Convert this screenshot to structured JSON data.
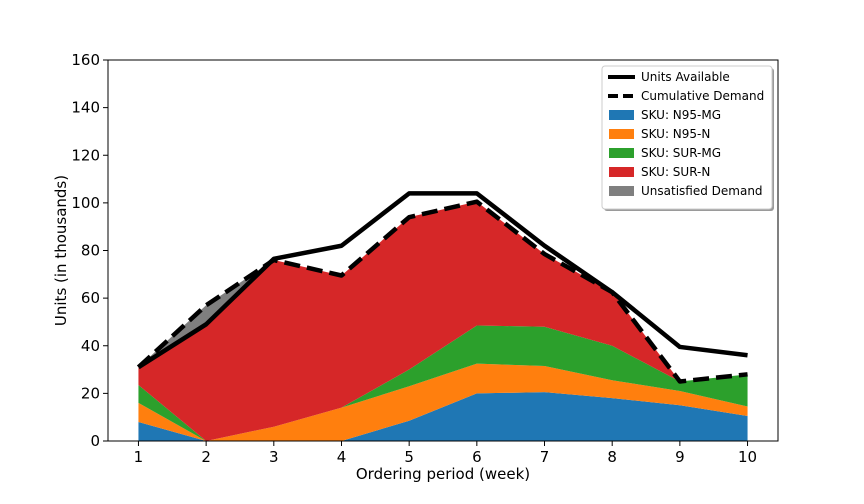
{
  "chart_data": {
    "type": "area",
    "xlabel": "Ordering period (week)",
    "ylabel": "Units (in thousands)",
    "x": [
      1,
      2,
      3,
      4,
      5,
      6,
      7,
      8,
      9,
      10
    ],
    "xticks": [
      "1",
      "2",
      "3",
      "4",
      "5",
      "6",
      "7",
      "8",
      "9",
      "10"
    ],
    "ylim": [
      0,
      160
    ],
    "yticks": [
      "0",
      "20",
      "40",
      "60",
      "80",
      "100",
      "120",
      "140",
      "160"
    ],
    "xlim": [
      0.55,
      10.45
    ],
    "grid": false,
    "legend_position": "top-right",
    "stacked_series": [
      {
        "name": "SKU: N95-MG",
        "color": "#1f77b4",
        "values": [
          8,
          0,
          0,
          0,
          8.5,
          20,
          20.5,
          18,
          15,
          10.5
        ]
      },
      {
        "name": "SKU: N95-N",
        "color": "#ff7f0e",
        "values": [
          8,
          0,
          6,
          14,
          14.5,
          12.5,
          11,
          7.5,
          6,
          4
        ]
      },
      {
        "name": "SKU: SUR-MG",
        "color": "#2ca02c",
        "values": [
          7.5,
          0,
          0,
          0,
          7,
          16,
          16.5,
          14.5,
          4,
          13.5
        ]
      },
      {
        "name": "SKU: SUR-N",
        "color": "#d62728",
        "values": [
          7.5,
          49,
          70,
          55.5,
          64,
          52,
          30.5,
          22.5,
          0,
          0
        ]
      },
      {
        "name": "Unsatisfied Demand",
        "color": "#7f7f7f",
        "values": [
          0,
          8,
          0,
          0,
          0,
          0,
          0,
          0,
          0,
          0
        ]
      }
    ],
    "line_series": [
      {
        "name": "Units Available",
        "style": "solid",
        "color": "#000000",
        "values": [
          31,
          49,
          76.5,
          82,
          104,
          104,
          82,
          62.5,
          39.5,
          36
        ]
      },
      {
        "name": "Cumulative Demand",
        "style": "dashed",
        "color": "#000000",
        "values": [
          31,
          57,
          76,
          69.5,
          94,
          100.5,
          78.5,
          62.5,
          25,
          28
        ]
      }
    ],
    "legend": [
      {
        "label": "Units Available",
        "kind": "line-solid",
        "color": "#000000"
      },
      {
        "label": "Cumulative Demand",
        "kind": "line-dashed",
        "color": "#000000"
      },
      {
        "label": "SKU: N95-MG",
        "kind": "patch",
        "color": "#1f77b4"
      },
      {
        "label": "SKU: N95-N",
        "kind": "patch",
        "color": "#ff7f0e"
      },
      {
        "label": "SKU: SUR-MG",
        "kind": "patch",
        "color": "#2ca02c"
      },
      {
        "label": "SKU: SUR-N",
        "kind": "patch",
        "color": "#d62728"
      },
      {
        "label": "Unsatisfied Demand",
        "kind": "patch",
        "color": "#7f7f7f"
      }
    ]
  }
}
